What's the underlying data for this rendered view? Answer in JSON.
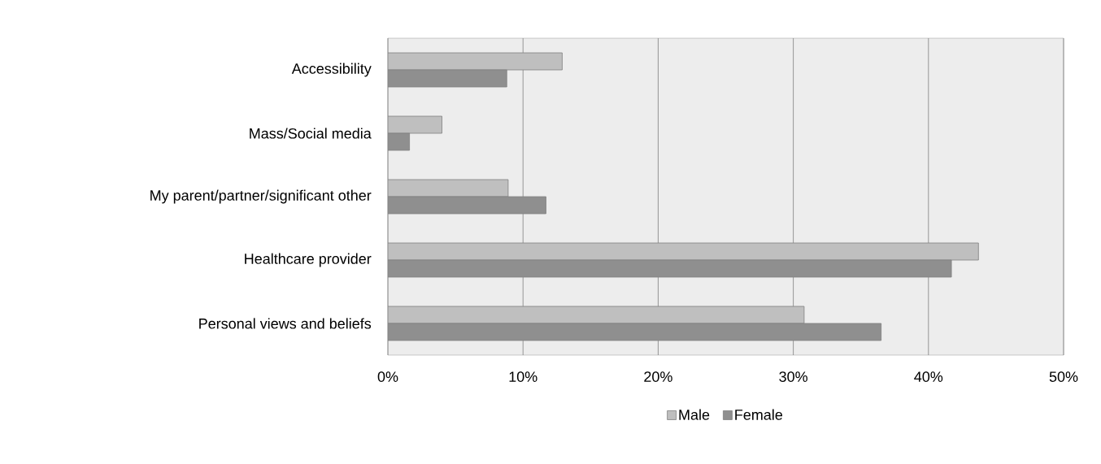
{
  "chart_data": {
    "type": "bar",
    "orientation": "horizontal",
    "categories": [
      "Accessibility",
      "Mass/Social media",
      "My parent/partner/significant other",
      "Healthcare provider",
      "Personal views and beliefs"
    ],
    "series": [
      {
        "name": "Male",
        "color": "#bfbfbf",
        "values": [
          12.9,
          4.0,
          8.9,
          43.7,
          30.8
        ]
      },
      {
        "name": "Female",
        "color": "#8f8f8f",
        "values": [
          8.8,
          1.6,
          11.7,
          41.7,
          36.5
        ]
      }
    ],
    "xlim": [
      0,
      50
    ],
    "xticks": [
      {
        "value": 0,
        "label": "0%"
      },
      {
        "value": 10,
        "label": "10%"
      },
      {
        "value": 20,
        "label": "20%"
      },
      {
        "value": 30,
        "label": "30%"
      },
      {
        "value": 40,
        "label": "40%"
      },
      {
        "value": 50,
        "label": "50%"
      }
    ],
    "grid": "x",
    "legend": "bottom"
  }
}
